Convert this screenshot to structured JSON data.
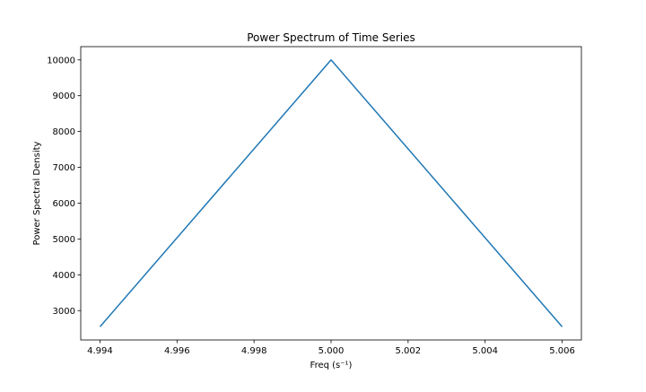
{
  "chart_data": {
    "type": "line",
    "title": "Power Spectrum of Time Series",
    "xlabel": "Freq (s⁻¹)",
    "ylabel": "Power Spectral Density",
    "xlim": [
      4.9935,
      5.0065
    ],
    "ylim": [
      2180,
      10370
    ],
    "x_ticks": [
      4.994,
      4.996,
      4.998,
      5.0,
      5.002,
      5.004,
      5.006
    ],
    "x_tick_labels": [
      "4.994",
      "4.996",
      "4.998",
      "5.000",
      "5.002",
      "5.004",
      "5.006"
    ],
    "y_ticks": [
      3000,
      4000,
      5000,
      6000,
      7000,
      8000,
      9000,
      10000
    ],
    "y_tick_labels": [
      "3000",
      "4000",
      "5000",
      "6000",
      "7000",
      "8000",
      "9000",
      "10000"
    ],
    "grid": false,
    "series": [
      {
        "color": "#1f77b4",
        "x": [
          4.994,
          5.0,
          5.006
        ],
        "y": [
          2550,
          10000,
          2550
        ]
      }
    ]
  }
}
